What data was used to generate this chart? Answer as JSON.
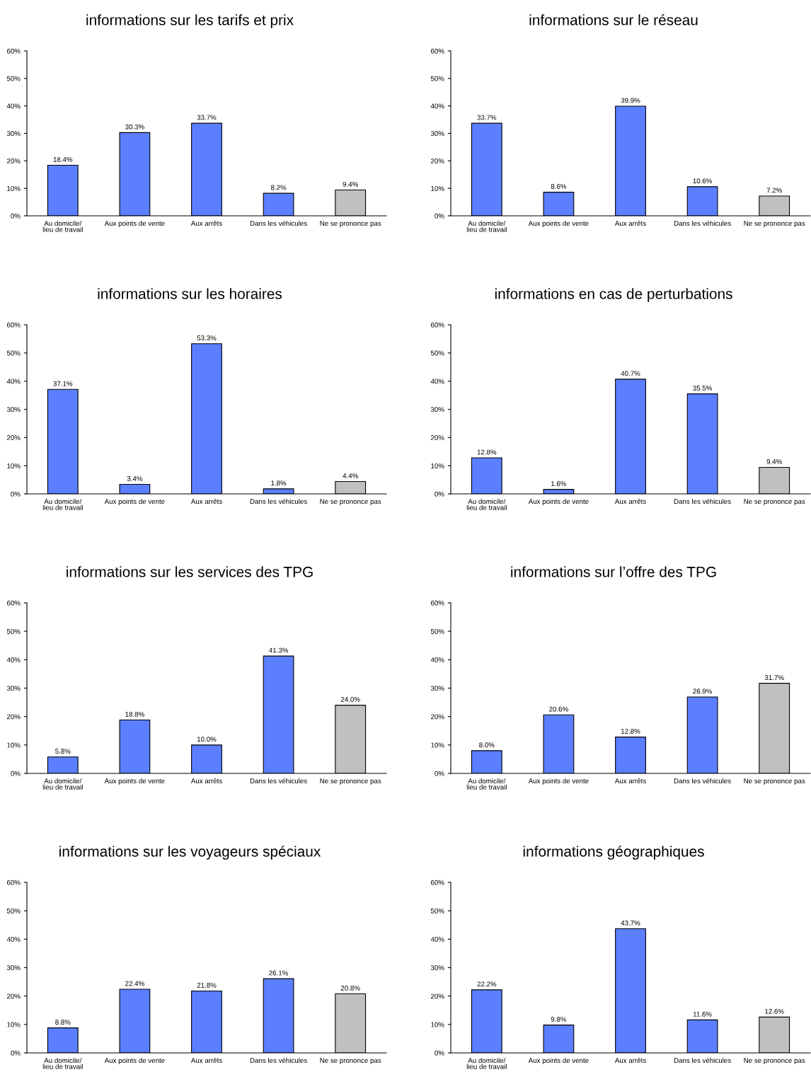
{
  "chart_data": [
    {
      "type": "bar",
      "title": "informations sur les tarifs et prix",
      "categories": [
        "Au domicile/\nlieu de travail",
        "Aux points de vente",
        "Aux arrêts",
        "Dans les véhicules",
        "Ne se prononce pas"
      ],
      "values": [
        18.4,
        30.3,
        33.7,
        8.2,
        9.4
      ],
      "value_labels": [
        "18.4%",
        "30.3%",
        "33.7%",
        "8.2%",
        "9.4%"
      ],
      "colors": [
        "#5b7fff",
        "#5b7fff",
        "#5b7fff",
        "#5b7fff",
        "#c0c0c0"
      ],
      "ylim": [
        0,
        60
      ],
      "yticks": [
        {
          "value": 0,
          "label": "0%"
        },
        {
          "value": 10,
          "label": "10%"
        },
        {
          "value": 20,
          "label": "20%"
        },
        {
          "value": 30,
          "label": "30%"
        },
        {
          "value": 40,
          "label": "40%"
        },
        {
          "value": 50,
          "label": "50%"
        },
        {
          "value": 60,
          "label": "60%"
        }
      ]
    },
    {
      "type": "bar",
      "title": "informations sur le réseau",
      "categories": [
        "Au domicile/\nlieu de travail",
        "Aux points de vente",
        "Aux arrêts",
        "Dans les véhicules",
        "Ne se prononce pas"
      ],
      "values": [
        33.7,
        8.6,
        39.9,
        10.6,
        7.2
      ],
      "value_labels": [
        "33.7%",
        "8.6%",
        "39.9%",
        "10.6%",
        "7.2%"
      ],
      "colors": [
        "#5b7fff",
        "#5b7fff",
        "#5b7fff",
        "#5b7fff",
        "#c0c0c0"
      ],
      "ylim": [
        0,
        60
      ],
      "yticks": [
        {
          "value": 0,
          "label": "0%"
        },
        {
          "value": 10,
          "label": "10%"
        },
        {
          "value": 20,
          "label": "20%"
        },
        {
          "value": 30,
          "label": "30%"
        },
        {
          "value": 40,
          "label": "40%"
        },
        {
          "value": 50,
          "label": "50%"
        },
        {
          "value": 60,
          "label": "60%"
        }
      ]
    },
    {
      "type": "bar",
      "title": "informations sur les horaires",
      "categories": [
        "Au domicile/\nlieu de travail",
        "Aux points de vente",
        "Aux arrêts",
        "Dans les véhicules",
        "Ne se prononce pas"
      ],
      "values": [
        37.1,
        3.4,
        53.3,
        1.8,
        4.4
      ],
      "value_labels": [
        "37.1%",
        "3.4%",
        "53.3%",
        "1.8%",
        "4.4%"
      ],
      "colors": [
        "#5b7fff",
        "#5b7fff",
        "#5b7fff",
        "#5b7fff",
        "#c0c0c0"
      ],
      "ylim": [
        0,
        60
      ],
      "yticks": [
        {
          "value": 0,
          "label": "0%"
        },
        {
          "value": 10,
          "label": "10%"
        },
        {
          "value": 20,
          "label": "20%"
        },
        {
          "value": 30,
          "label": "30%"
        },
        {
          "value": 40,
          "label": "40%"
        },
        {
          "value": 50,
          "label": "50%"
        },
        {
          "value": 60,
          "label": "60%"
        }
      ]
    },
    {
      "type": "bar",
      "title": "informations en cas de perturbations",
      "categories": [
        "Au domicile/\nlieu de travail",
        "Aux points de vente",
        "Aux arrêts",
        "Dans les véhicules",
        "Ne se prononce pas"
      ],
      "values": [
        12.8,
        1.6,
        40.7,
        35.5,
        9.4
      ],
      "value_labels": [
        "12.8%",
        "1.6%",
        "40.7%",
        "35.5%",
        "9.4%"
      ],
      "colors": [
        "#5b7fff",
        "#5b7fff",
        "#5b7fff",
        "#5b7fff",
        "#c0c0c0"
      ],
      "ylim": [
        0,
        60
      ],
      "yticks": [
        {
          "value": 0,
          "label": "0%"
        },
        {
          "value": 10,
          "label": "10%"
        },
        {
          "value": 20,
          "label": "20%"
        },
        {
          "value": 30,
          "label": "30%"
        },
        {
          "value": 40,
          "label": "40%"
        },
        {
          "value": 50,
          "label": "50%"
        },
        {
          "value": 60,
          "label": "60%"
        }
      ]
    },
    {
      "type": "bar",
      "title": "informations sur les services des TPG",
      "categories": [
        "Au domicile/\nlieu de travail",
        "Aux points de vente",
        "Aux arrêts",
        "Dans les véhicules",
        "Ne se prononce pas"
      ],
      "values": [
        5.8,
        18.8,
        10.0,
        41.3,
        24.0
      ],
      "value_labels": [
        "5.8%",
        "18.8%",
        "10.0%",
        "41.3%",
        "24.0%"
      ],
      "colors": [
        "#5b7fff",
        "#5b7fff",
        "#5b7fff",
        "#5b7fff",
        "#c0c0c0"
      ],
      "ylim": [
        0,
        60
      ],
      "yticks": [
        {
          "value": 0,
          "label": "0%"
        },
        {
          "value": 10,
          "label": "10%"
        },
        {
          "value": 20,
          "label": "20%"
        },
        {
          "value": 30,
          "label": "30%"
        },
        {
          "value": 40,
          "label": "40%"
        },
        {
          "value": 50,
          "label": "50%"
        },
        {
          "value": 60,
          "label": "60%"
        }
      ]
    },
    {
      "type": "bar",
      "title": "informations sur l’offre des TPG",
      "categories": [
        "Au domicile/\nlieu de travail",
        "Aux points de vente",
        "Aux arrêts",
        "Dans les véhicules",
        "Ne se prononce pas"
      ],
      "values": [
        8.0,
        20.6,
        12.8,
        26.9,
        31.7
      ],
      "value_labels": [
        "8.0%",
        "20.6%",
        "12.8%",
        "26.9%",
        "31.7%"
      ],
      "colors": [
        "#5b7fff",
        "#5b7fff",
        "#5b7fff",
        "#5b7fff",
        "#c0c0c0"
      ],
      "ylim": [
        0,
        60
      ],
      "yticks": [
        {
          "value": 0,
          "label": "0%"
        },
        {
          "value": 10,
          "label": "10%"
        },
        {
          "value": 20,
          "label": "20%"
        },
        {
          "value": 30,
          "label": "30%"
        },
        {
          "value": 40,
          "label": "40%"
        },
        {
          "value": 50,
          "label": "50%"
        },
        {
          "value": 60,
          "label": "60%"
        }
      ]
    },
    {
      "type": "bar",
      "title": "informations sur les voyageurs spéciaux",
      "categories": [
        "Au domicile/\nlieu de travail",
        "Aux points de vente",
        "Aux arrêts",
        "Dans les véhicules",
        "Ne se prononce pas"
      ],
      "values": [
        8.8,
        22.4,
        21.8,
        26.1,
        20.8
      ],
      "value_labels": [
        "8.8%",
        "22.4%",
        "21.8%",
        "26.1%",
        "20.8%"
      ],
      "colors": [
        "#5b7fff",
        "#5b7fff",
        "#5b7fff",
        "#5b7fff",
        "#c0c0c0"
      ],
      "ylim": [
        0,
        60
      ],
      "yticks": [
        {
          "value": 0,
          "label": "0%"
        },
        {
          "value": 10,
          "label": "10%"
        },
        {
          "value": 20,
          "label": "20%"
        },
        {
          "value": 30,
          "label": "30%"
        },
        {
          "value": 40,
          "label": "40%"
        },
        {
          "value": 50,
          "label": "50%"
        },
        {
          "value": 60,
          "label": "60%"
        }
      ]
    },
    {
      "type": "bar",
      "title": "informations géographiques",
      "categories": [
        "Au domicile/\nlieu de travail",
        "Aux points de vente",
        "Aux arrêts",
        "Dans les véhicules",
        "Ne se prononce pas"
      ],
      "values": [
        22.2,
        9.8,
        43.7,
        11.6,
        12.6
      ],
      "value_labels": [
        "22.2%",
        "9.8%",
        "43.7%",
        "11.6%",
        "12.6%"
      ],
      "colors": [
        "#5b7fff",
        "#5b7fff",
        "#5b7fff",
        "#5b7fff",
        "#c0c0c0"
      ],
      "ylim": [
        0,
        60
      ],
      "yticks": [
        {
          "value": 0,
          "label": "0%"
        },
        {
          "value": 10,
          "label": "10%"
        },
        {
          "value": 20,
          "label": "20%"
        },
        {
          "value": 30,
          "label": "30%"
        },
        {
          "value": 40,
          "label": "40%"
        },
        {
          "value": 50,
          "label": "50%"
        },
        {
          "value": 60,
          "label": "60%"
        }
      ]
    }
  ]
}
